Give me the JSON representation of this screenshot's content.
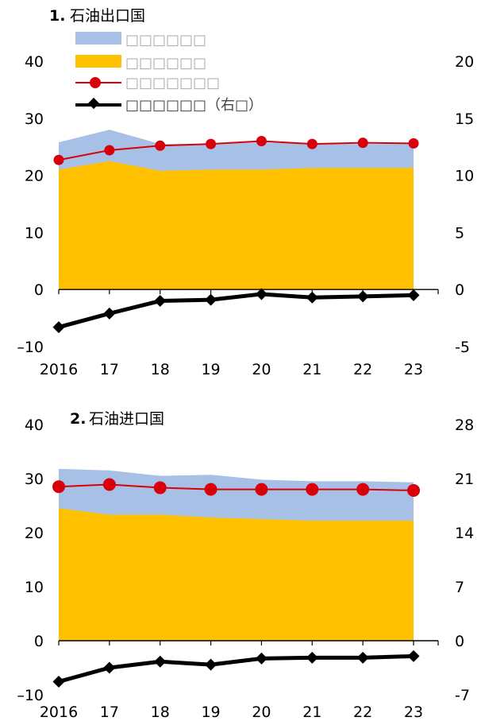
{
  "colors": {
    "area_top": "#a7c0e6",
    "area_base": "#ffc000",
    "line_red": "#d8000b",
    "line_black": "#000000"
  },
  "legend": [
    {
      "name": "□□□□□□",
      "icon": "blue-area-swatch-icon"
    },
    {
      "name": "□□□□□□",
      "icon": "orange-area-swatch-icon"
    },
    {
      "name": "□□□□□□□",
      "icon": "red-circle-line-icon"
    },
    {
      "name": "□□□□□□（右□）",
      "icon": "black-diamond-line-icon"
    }
  ],
  "chart_data": [
    {
      "type": "area",
      "title_num": "1.",
      "title": "石油出口国",
      "categories": [
        "2016",
        "17",
        "18",
        "19",
        "20",
        "21",
        "22",
        "23"
      ],
      "ylim": [
        -10,
        40
      ],
      "yticks": [
        -10,
        0,
        10,
        20,
        30,
        40
      ],
      "ytick_labels": [
        "–10",
        "0",
        "10",
        "20",
        "30",
        "40"
      ],
      "y2lim": [
        -5,
        20
      ],
      "y2ticks": [
        -5,
        0,
        5,
        10,
        15,
        20
      ],
      "y2tick_labels": [
        "-5",
        "0",
        "5",
        "10",
        "15",
        "20"
      ],
      "grid": false,
      "legend_position": "top-left",
      "series": [
        {
          "legend_index": 0,
          "kind": "area-top",
          "values": [
            25.8,
            28.0,
            25.5,
            25.5,
            25.8,
            25.5,
            25.5,
            25.5
          ]
        },
        {
          "legend_index": 1,
          "kind": "area-base",
          "values": [
            21.0,
            22.5,
            20.8,
            21.0,
            21.0,
            21.3,
            21.3,
            21.3
          ]
        },
        {
          "legend_index": 2,
          "kind": "line-circle",
          "axis": "left",
          "values": [
            22.7,
            24.4,
            25.2,
            25.5,
            26.0,
            25.5,
            25.7,
            25.6
          ]
        },
        {
          "legend_index": 3,
          "kind": "line-diamond",
          "axis": "right",
          "values": [
            -3.3,
            -2.1,
            -1.0,
            -0.9,
            -0.4,
            -0.7,
            -0.6,
            -0.5
          ]
        }
      ]
    },
    {
      "type": "area",
      "title_num": "2.",
      "title": "石油进口国",
      "categories": [
        "2016",
        "17",
        "18",
        "19",
        "20",
        "21",
        "22",
        "23"
      ],
      "ylim": [
        -10,
        40
      ],
      "yticks": [
        -10,
        0,
        10,
        20,
        30,
        40
      ],
      "ytick_labels": [
        "–10",
        "0",
        "10",
        "20",
        "30",
        "40"
      ],
      "y2lim": [
        -7,
        28
      ],
      "y2ticks": [
        -7,
        0,
        7,
        14,
        21,
        28
      ],
      "y2tick_labels": [
        "-7",
        "0",
        "7",
        "14",
        "21",
        "28"
      ],
      "grid": false,
      "series": [
        {
          "legend_index": 0,
          "kind": "area-top",
          "values": [
            31.8,
            31.5,
            30.5,
            30.7,
            29.8,
            29.5,
            29.5,
            29.3
          ]
        },
        {
          "legend_index": 1,
          "kind": "area-base",
          "values": [
            24.5,
            23.3,
            23.3,
            22.8,
            22.5,
            22.2,
            22.2,
            22.2
          ]
        },
        {
          "legend_index": 2,
          "kind": "line-circle",
          "axis": "left",
          "values": [
            28.5,
            28.9,
            28.3,
            28.0,
            28.0,
            28.0,
            28.0,
            27.8
          ]
        },
        {
          "legend_index": 3,
          "kind": "line-diamond",
          "axis": "right",
          "values": [
            -5.3,
            -3.5,
            -2.7,
            -3.1,
            -2.3,
            -2.2,
            -2.2,
            -2.0
          ]
        }
      ]
    }
  ]
}
